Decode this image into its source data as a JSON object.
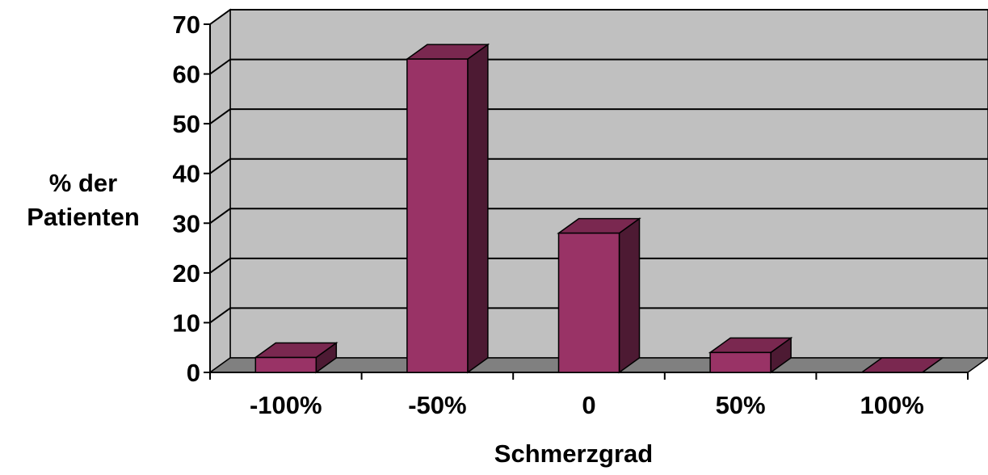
{
  "chart_data": {
    "type": "bar",
    "categories": [
      "-100%",
      "-50%",
      "0",
      "50%",
      "100%"
    ],
    "series": [
      {
        "values": [
          3,
          63,
          28,
          4,
          0
        ]
      }
    ],
    "xlabel": "Schmerzgrad",
    "ylabel_lines": [
      "% der",
      "Patienten"
    ],
    "ylim": [
      0,
      70
    ],
    "yticks": [
      0,
      10,
      20,
      30,
      40,
      50,
      60,
      70
    ],
    "grid": true,
    "style": "3d-column",
    "colors": {
      "bar_front": "#993366",
      "bar_top": "#7a2850",
      "bar_side": "#4d1a33",
      "plot_back": "#c0c0c0",
      "floor": "#808080"
    }
  }
}
